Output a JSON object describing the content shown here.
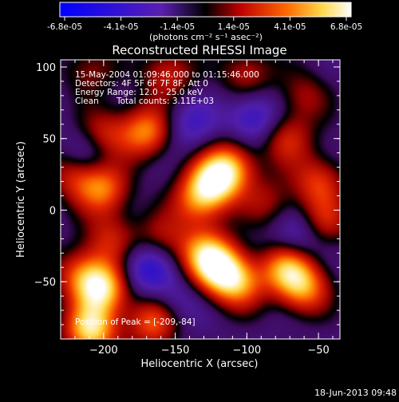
{
  "chart_data": {
    "type": "heatmap",
    "title": "Reconstructed RHESSI Image",
    "xlabel": "Heliocentric X (arcsec)",
    "ylabel": "Heliocentric Y (arcsec)",
    "xlim": [
      -230,
      -35
    ],
    "ylim": [
      -90,
      105
    ],
    "x_ticks": [
      -200,
      -150,
      -100,
      -50
    ],
    "y_ticks": [
      -50,
      0,
      50,
      100
    ],
    "colorbar": {
      "min": -6.8e-05,
      "max": 6.8e-05,
      "tick_labels": [
        "-6.8e-05",
        "-4.1e-05",
        "-1.4e-05",
        "1.4e-05",
        "4.1e-05",
        "6.8e-05"
      ],
      "units_label": "(photons cm⁻² s⁻¹ asec⁻²)"
    },
    "annotations": [
      "15-May-2004 01:09:46.000 to 01:15:46.000",
      "Detectors: 4F 5F 6F 7F 8F, Att 0",
      "Energy Range: 12.0 - 25.0 keV",
      "Clean",
      "Total counts: 3.11E+03"
    ],
    "peak_label": "Position of Peak = [-209,-84]",
    "timestamp": "18-Jun-2013 09:48",
    "grid": false,
    "sources": [
      {
        "x": -209,
        "y": -84,
        "v": 1.0
      },
      {
        "x": -200,
        "y": -55,
        "v": 0.9
      },
      {
        "x": -215,
        "y": -45,
        "v": 0.6
      },
      {
        "x": -118,
        "y": -42,
        "v": 0.9
      },
      {
        "x": -130,
        "y": -30,
        "v": 0.7
      },
      {
        "x": -105,
        "y": -52,
        "v": 0.6
      },
      {
        "x": -72,
        "y": -40,
        "v": 0.8
      },
      {
        "x": -60,
        "y": -55,
        "v": 0.7
      },
      {
        "x": -165,
        "y": -78,
        "v": 0.7
      },
      {
        "x": -125,
        "y": 18,
        "v": 0.85
      },
      {
        "x": -112,
        "y": 30,
        "v": 0.8
      },
      {
        "x": -135,
        "y": 5,
        "v": 0.5
      },
      {
        "x": -200,
        "y": 15,
        "v": 0.7
      },
      {
        "x": -220,
        "y": 25,
        "v": 0.5
      },
      {
        "x": -170,
        "y": 55,
        "v": 0.75
      },
      {
        "x": -200,
        "y": 52,
        "v": 0.55
      },
      {
        "x": -72,
        "y": 50,
        "v": 0.5
      },
      {
        "x": -50,
        "y": 20,
        "v": 0.55
      },
      {
        "x": -45,
        "y": -8,
        "v": 0.45
      },
      {
        "x": -155,
        "y": 95,
        "v": 0.5
      },
      {
        "x": -100,
        "y": 95,
        "v": 0.45
      },
      {
        "x": -210,
        "y": 98,
        "v": 0.35
      },
      {
        "x": -160,
        "y": -20,
        "v": 0.4
      },
      {
        "x": -85,
        "y": 5,
        "v": 0.35
      },
      {
        "x": -195,
        "y": -20,
        "v": 0.45
      },
      {
        "x": -60,
        "y": 80,
        "v": 0.35
      },
      {
        "x": -170,
        "y": -40,
        "v": -0.55
      },
      {
        "x": -95,
        "y": 65,
        "v": -0.5
      },
      {
        "x": -210,
        "y": 40,
        "v": -0.4
      },
      {
        "x": -65,
        "y": -20,
        "v": -0.4
      },
      {
        "x": -140,
        "y": 60,
        "v": -0.35
      },
      {
        "x": -150,
        "y": -65,
        "v": -0.3
      }
    ]
  }
}
